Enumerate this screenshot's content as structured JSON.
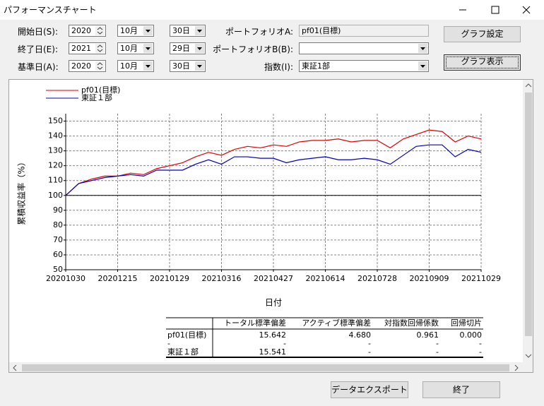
{
  "window": {
    "title": "パフォーマンスチャート"
  },
  "form": {
    "start": {
      "label": "開始日(S):",
      "year": "2020",
      "month": "10月",
      "day": "30日"
    },
    "end": {
      "label": "終了日(E):",
      "year": "2021",
      "month": "10月",
      "day": "29日"
    },
    "base": {
      "label": "基準日(A):",
      "year": "2020",
      "month": "10月",
      "day": "30日"
    },
    "portfolio_a": {
      "label": "ポートフォリオA:",
      "value": "pf01(目標)"
    },
    "portfolio_b": {
      "label": "ポートフォリオB(B):"
    },
    "index": {
      "label": "指数(I):",
      "value": "東証1部"
    }
  },
  "buttons": {
    "graph_settings": "グラフ設定",
    "graph_show": "グラフ表示",
    "export": "データエクスポート",
    "close": "終了"
  },
  "chart_data": {
    "type": "line",
    "x_label": "日付",
    "y_label": "累積収益率（%）",
    "categories": [
      "20201030",
      null,
      null,
      null,
      "20201215",
      null,
      null,
      null,
      "20210129",
      null,
      null,
      null,
      "20210316",
      null,
      null,
      null,
      "20210427",
      null,
      null,
      null,
      "20210614",
      null,
      null,
      null,
      "20210728",
      null,
      null,
      null,
      "20210909",
      null,
      null,
      null,
      "20211029"
    ],
    "series": [
      {
        "name": "pf01(目標)",
        "color": "#e00000",
        "values": [
          100,
          108,
          111,
          113,
          113,
          115,
          114,
          118,
          120,
          122,
          126,
          129,
          127,
          131,
          133,
          132,
          134,
          133,
          136,
          137,
          137,
          138,
          136,
          137,
          137,
          132,
          138,
          141,
          144,
          143,
          136,
          140,
          138
        ]
      },
      {
        "name": "東証１部",
        "color": "#0000c0",
        "values": [
          100,
          108,
          110,
          112,
          113,
          114,
          113,
          117,
          117,
          117,
          121,
          124,
          121,
          126,
          126,
          125,
          125,
          122,
          124,
          125,
          126,
          124,
          124,
          125,
          124,
          121,
          127,
          133,
          134,
          134,
          126,
          131,
          129
        ]
      }
    ],
    "ylim": [
      50,
      155
    ],
    "yticks": [
      50,
      60,
      70,
      80,
      90,
      100,
      110,
      120,
      130,
      140,
      150
    ],
    "reference_line": 100,
    "grid": true
  },
  "table": {
    "header": [
      "トータル標準偏差",
      "アクティブ標準偏差",
      "対指数回帰係数",
      "回帰切片"
    ],
    "rows": [
      [
        "pf01(目標)",
        "15.642",
        "4.680",
        "0.961",
        "0.000"
      ],
      [
        "-",
        "-",
        "-",
        "-",
        "-"
      ],
      [
        "東証１部",
        "15.541",
        "-",
        "-",
        "-"
      ]
    ]
  }
}
